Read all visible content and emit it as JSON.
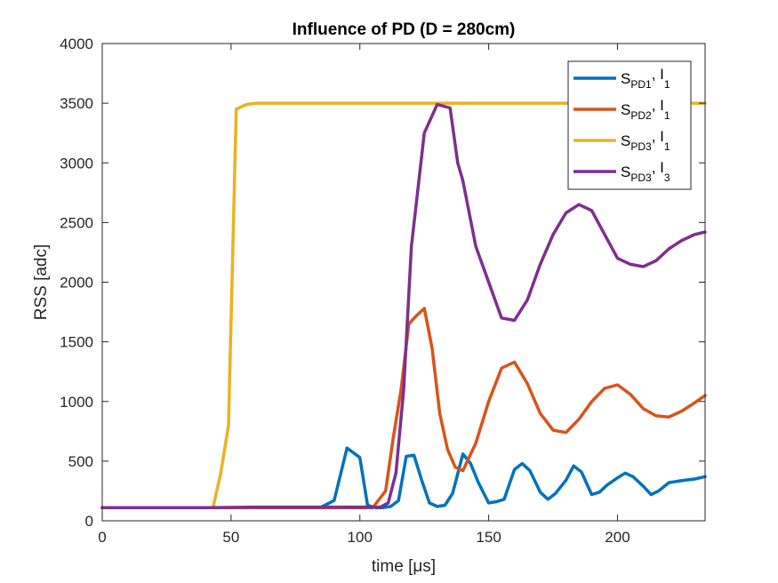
{
  "chart_data": {
    "type": "line",
    "title": "Influence of PD (D = 280cm)",
    "xlabel": "time [μs]",
    "ylabel": "RSS [adc]",
    "xlim": [
      0,
      234
    ],
    "ylim": [
      0,
      4000
    ],
    "xticks": [
      0,
      50,
      100,
      150,
      200
    ],
    "yticks": [
      0,
      500,
      1000,
      1500,
      2000,
      2500,
      3000,
      3500,
      4000
    ],
    "grid": false,
    "legend_position": "top-right",
    "series": [
      {
        "name": "S_PD1, I_1",
        "label": {
          "s_sub": "PD1",
          "i_sub": "1"
        },
        "color": "#0072BD",
        "x": [
          0,
          10,
          20,
          30,
          40,
          50,
          60,
          70,
          80,
          85,
          90,
          95,
          100,
          103,
          106,
          109,
          112,
          115,
          118,
          121,
          124,
          127,
          130,
          133,
          136,
          140,
          143,
          146,
          150,
          153,
          156,
          160,
          163,
          166,
          170,
          173,
          176,
          180,
          183,
          186,
          190,
          193,
          196,
          200,
          203,
          206,
          210,
          213,
          216,
          220,
          223,
          226,
          230,
          234
        ],
        "y": [
          110,
          110,
          110,
          110,
          110,
          110,
          110,
          110,
          110,
          115,
          170,
          610,
          530,
          130,
          110,
          110,
          120,
          170,
          540,
          550,
          340,
          150,
          120,
          130,
          230,
          560,
          480,
          320,
          150,
          160,
          180,
          430,
          480,
          420,
          240,
          180,
          230,
          340,
          460,
          410,
          220,
          240,
          300,
          360,
          400,
          370,
          290,
          220,
          250,
          320,
          330,
          340,
          350,
          370
        ]
      },
      {
        "name": "S_PD2, I_1",
        "label": {
          "s_sub": "PD2",
          "i_sub": "1"
        },
        "color": "#D95319",
        "x": [
          0,
          20,
          40,
          60,
          80,
          100,
          105,
          110,
          113,
          116,
          119,
          122,
          125,
          128,
          131,
          134,
          137,
          140,
          145,
          150,
          155,
          160,
          165,
          170,
          175,
          180,
          185,
          190,
          195,
          200,
          205,
          210,
          215,
          220,
          225,
          230,
          234
        ],
        "y": [
          110,
          110,
          110,
          110,
          110,
          110,
          110,
          250,
          700,
          1100,
          1650,
          1720,
          1780,
          1450,
          900,
          600,
          450,
          420,
          650,
          1000,
          1280,
          1330,
          1150,
          900,
          760,
          740,
          850,
          1000,
          1110,
          1140,
          1060,
          940,
          880,
          870,
          920,
          990,
          1050
        ]
      },
      {
        "name": "S_PD3, I_1",
        "label": {
          "s_sub": "PD3",
          "i_sub": "1"
        },
        "color": "#EDB120",
        "x": [
          0,
          10,
          20,
          30,
          40,
          43,
          46,
          49,
          52,
          56,
          60,
          70,
          80,
          90,
          100,
          110,
          120,
          130,
          140,
          150,
          160,
          170,
          180,
          190,
          200,
          210,
          220,
          230,
          234
        ],
        "y": [
          110,
          110,
          110,
          110,
          110,
          110,
          400,
          800,
          3450,
          3490,
          3500,
          3500,
          3500,
          3500,
          3500,
          3500,
          3500,
          3500,
          3500,
          3500,
          3500,
          3500,
          3500,
          3500,
          3500,
          3500,
          3500,
          3500,
          3500
        ]
      },
      {
        "name": "S_PD3, I_3",
        "label": {
          "s_sub": "PD3",
          "i_sub": "3"
        },
        "color": "#7E2F8E",
        "x": [
          0,
          20,
          40,
          60,
          80,
          100,
          108,
          111,
          114,
          117,
          120,
          125,
          130,
          135,
          138,
          140,
          145,
          150,
          155,
          160,
          165,
          170,
          175,
          180,
          185,
          190,
          195,
          200,
          205,
          210,
          215,
          220,
          225,
          230,
          234
        ],
        "y": [
          110,
          110,
          110,
          115,
          115,
          115,
          115,
          150,
          400,
          1100,
          2300,
          3250,
          3490,
          3460,
          3000,
          2850,
          2300,
          2000,
          1700,
          1680,
          1850,
          2150,
          2400,
          2580,
          2650,
          2600,
          2400,
          2200,
          2150,
          2130,
          2180,
          2280,
          2350,
          2400,
          2420
        ]
      }
    ]
  }
}
